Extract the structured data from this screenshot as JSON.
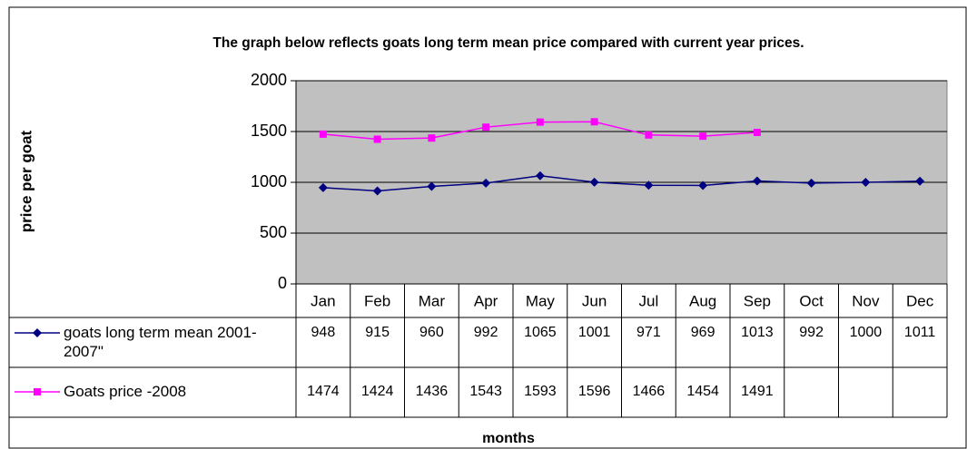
{
  "chart_data": {
    "type": "line",
    "title": "The graph below reflects goats long term mean price compared with current year prices.",
    "y_label": "price per goat",
    "x_label": "months",
    "categories": [
      "Jan",
      "Feb",
      "Mar",
      "Apr",
      "May",
      "Jun",
      "Jul",
      "Aug",
      "Sep",
      "Oct",
      "Nov",
      "Dec"
    ],
    "series": [
      {
        "name": "goats long term mean 2001-2007\"",
        "color": "#000080",
        "marker": "diamond",
        "values": [
          948,
          915,
          960,
          992,
          1065,
          1001,
          971,
          969,
          1013,
          992,
          1000,
          1011
        ]
      },
      {
        "name": "Goats price -2008",
        "color": "#ff00ff",
        "marker": "square",
        "values": [
          1474,
          1424,
          1436,
          1543,
          1593,
          1596,
          1466,
          1454,
          1491,
          null,
          null,
          null
        ]
      }
    ],
    "ylim": [
      0,
      2000
    ],
    "yticks": [
      0,
      500,
      1000,
      1500,
      2000
    ],
    "grid": true,
    "plot_background": "#c0c0c0",
    "data_table": true
  }
}
